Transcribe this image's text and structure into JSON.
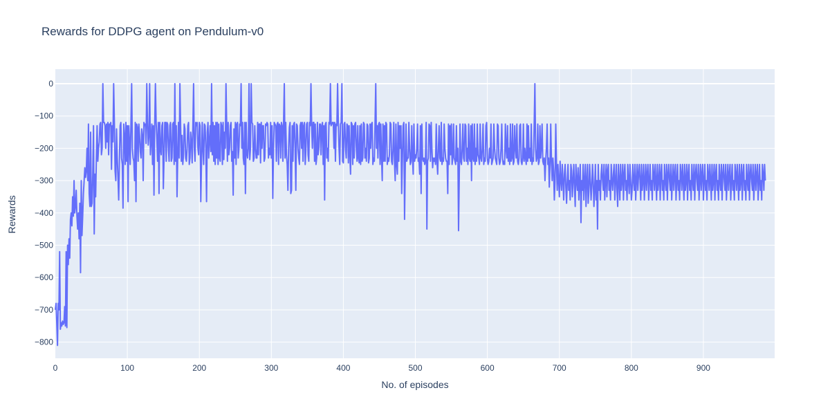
{
  "chart_data": {
    "type": "line",
    "title": "Rewards for DDPG agent on Pendulum-v0",
    "xlabel": "No. of episodes",
    "ylabel": "Rewards",
    "xlim": [
      0,
      999
    ],
    "ylim": [
      -850,
      45
    ],
    "x_ticks": [
      0,
      100,
      200,
      300,
      400,
      500,
      600,
      700,
      800,
      900
    ],
    "y_ticks": [
      0,
      -100,
      -200,
      -300,
      -400,
      -500,
      -600,
      -700,
      -800
    ],
    "grid": true,
    "legend": "none",
    "colors": {
      "line": "#636efa",
      "plot_bg": "#e5ecf6",
      "grid": "#ffffff",
      "text": "#2a3f5f"
    },
    "series": [
      {
        "x_start": 0,
        "x_step": 1,
        "values": [
          -700,
          -680,
          -740,
          -810,
          -680,
          -700,
          -520,
          -760,
          -740,
          -750,
          -735,
          -745,
          -740,
          -690,
          -750,
          -520,
          -755,
          -500,
          -560,
          -480,
          -540,
          -420,
          -400,
          -440,
          -350,
          -410,
          -300,
          -400,
          -380,
          -330,
          -410,
          -450,
          -400,
          -480,
          -370,
          -585,
          -300,
          -470,
          -410,
          -340,
          -300,
          -260,
          -290,
          -270,
          -200,
          -300,
          -125,
          -340,
          -380,
          -150,
          -380,
          -370,
          -280,
          -130,
          -465,
          -280,
          -350,
          -230,
          -130,
          -240,
          -200,
          -180,
          -125,
          -120,
          -220,
          -200,
          0,
          -120,
          -120,
          -130,
          -200,
          -125,
          -180,
          -120,
          -220,
          -125,
          -130,
          -120,
          -265,
          -130,
          -180,
          0,
          -120,
          -270,
          -300,
          -140,
          -230,
          -290,
          -360,
          -240,
          -130,
          -120,
          -230,
          -250,
          -385,
          -125,
          -160,
          -250,
          -120,
          -240,
          -130,
          -365,
          -130,
          -180,
          -250,
          -125,
          0,
          -200,
          -230,
          -240,
          -300,
          -120,
          -365,
          -125,
          -135,
          -240,
          -125,
          -160,
          -210,
          -230,
          -140,
          -160,
          -300,
          -120,
          -130,
          -125,
          -185,
          0,
          -120,
          -190,
          -160,
          0,
          -220,
          -175,
          -125,
          -250,
          -130,
          -345,
          -130,
          0,
          -120,
          -170,
          -240,
          -120,
          -340,
          -120,
          -200,
          -220,
          -130,
          -120,
          -325,
          -225,
          -120,
          -120,
          -240,
          -120,
          -125,
          -200,
          -240,
          -130,
          -120,
          -240,
          -230,
          -125,
          -120,
          -250,
          0,
          -240,
          -130,
          -350,
          -220,
          -120,
          -230,
          0,
          -130,
          -240,
          -160,
          -250,
          -220,
          -125,
          -140,
          -230,
          -240,
          -200,
          -130,
          -120,
          -250,
          -230,
          -150,
          -180,
          -245,
          -135,
          0,
          -200,
          -240,
          -120,
          -130,
          -120,
          -200,
          -220,
          -120,
          -130,
          -365,
          -240,
          -120,
          -200,
          -250,
          -125,
          -130,
          -200,
          -365,
          -150,
          -120,
          -230,
          -180,
          -130,
          -210,
          0,
          -220,
          -120,
          -240,
          -130,
          -250,
          -120,
          -230,
          -120,
          -250,
          -125,
          -230,
          -240,
          -120,
          -130,
          -250,
          -120,
          -235,
          -150,
          -200,
          0,
          -130,
          -240,
          -120,
          -220,
          -200,
          -130,
          -120,
          -240,
          -210,
          -345,
          -140,
          -230,
          -120,
          -250,
          -125,
          -120,
          -230,
          -200,
          -125,
          -130,
          0,
          -200,
          -120,
          -230,
          -250,
          -120,
          -340,
          -120,
          -215,
          -230,
          -200,
          0,
          -235,
          -200,
          0,
          -120,
          -125,
          -240,
          -230,
          -130,
          -200,
          -230,
          -230,
          -120,
          -220,
          -125,
          -125,
          -245,
          -120,
          -200,
          -130,
          -130,
          -240,
          -230,
          -125,
          -130,
          -120,
          -125,
          -230,
          -200,
          -220,
          -120,
          -230,
          -130,
          -355,
          -200,
          -120,
          -125,
          -130,
          -240,
          -125,
          -120,
          -250,
          -125,
          -130,
          -230,
          -120,
          -130,
          -240,
          -120,
          0,
          -230,
          -120,
          -220,
          -250,
          -330,
          -200,
          -135,
          -120,
          -340,
          -330,
          -130,
          -240,
          -125,
          -120,
          -200,
          -330,
          -125,
          -130,
          -200,
          -230,
          -250,
          -130,
          -120,
          -200,
          -120,
          -240,
          -130,
          -120,
          -250,
          -200,
          -125,
          -120,
          -220,
          -240,
          -120,
          -130,
          0,
          -130,
          -200,
          -120,
          -120,
          -240,
          -125,
          -250,
          -230,
          -120,
          -220,
          -200,
          -125,
          -125,
          -220,
          -130,
          -120,
          -250,
          -130,
          -360,
          -125,
          -120,
          -230,
          -200,
          -240,
          -120,
          -125,
          0,
          -130,
          -125,
          -120,
          -120,
          -200,
          -120,
          -240,
          -125,
          -130,
          0,
          -120,
          -200,
          -250,
          -125,
          -120,
          0,
          -240,
          -245,
          -125,
          -120,
          -200,
          -230,
          -125,
          -130,
          -245,
          -130,
          -220,
          -280,
          -120,
          -125,
          -250,
          -130,
          -230,
          -125,
          -120,
          -200,
          -240,
          -130,
          -230,
          -245,
          -130,
          -250,
          -125,
          -240,
          -230,
          -120,
          -125,
          -230,
          -200,
          -240,
          -125,
          -130,
          -245,
          -230,
          -125,
          -200,
          -125,
          -120,
          -250,
          -230,
          -240,
          -125,
          0,
          -200,
          -130,
          -230,
          -125,
          -120,
          -250,
          -125,
          -225,
          -300,
          -125,
          -240,
          -130,
          -240,
          -120,
          -125,
          -250,
          -230,
          -240,
          -220,
          -120,
          -125,
          -240,
          -250,
          -200,
          -120,
          -240,
          -300,
          -125,
          -250,
          -280,
          -120,
          -240,
          -130,
          -200,
          -130,
          -340,
          -230,
          -130,
          -120,
          -420,
          -250,
          -125,
          -240,
          -230,
          -230,
          -120,
          -200,
          -250,
          -240,
          -130,
          -230,
          -280,
          -125,
          -240,
          -220,
          -230,
          -200,
          -125,
          -240,
          -230,
          -280,
          -130,
          -340,
          -125,
          -230,
          -240,
          -230,
          -250,
          -240,
          -120,
          -450,
          -240,
          -230,
          -125,
          -130,
          -240,
          -120,
          -200,
          -260,
          -230,
          -240,
          -230,
          -250,
          -125,
          -240,
          -280,
          -200,
          -130,
          -230,
          -240,
          -120,
          -250,
          -230,
          -240,
          -125,
          -200,
          -230,
          -240,
          -240,
          -340,
          -125,
          -250,
          -130,
          -220,
          -125,
          -250,
          -230,
          -125,
          -230,
          -240,
          -250,
          -130,
          -240,
          -200,
          -455,
          -280,
          -125,
          -240,
          -250,
          -200,
          -125,
          -230,
          -240,
          -125,
          -130,
          -240,
          -200,
          -250,
          -125,
          -230,
          -240,
          -130,
          -300,
          -125,
          -230,
          -240,
          -125,
          -250,
          -200,
          -240,
          -125,
          -220,
          -230,
          -250,
          -125,
          -230,
          -240,
          -200,
          -125,
          -250,
          -230,
          -240,
          -130,
          -120,
          -230,
          -250,
          -240,
          -200,
          -230,
          -125,
          -250,
          -240,
          -230,
          -125,
          -200,
          -230,
          -240,
          -250,
          -125,
          -130,
          -230,
          -250,
          -240,
          -200,
          -125,
          -230,
          -250,
          -240,
          -250,
          -125,
          -200,
          -230,
          -130,
          -240,
          -200,
          -250,
          -125,
          -240,
          -230,
          -125,
          -250,
          -240,
          -130,
          -200,
          -230,
          -125,
          -240,
          -250,
          -230,
          -130,
          -125,
          -240,
          -250,
          -230,
          -125,
          -240,
          -200,
          -230,
          -250,
          -125,
          -240,
          -130,
          -230,
          -200,
          -240,
          -125,
          -250,
          -230,
          -240,
          -130,
          0,
          -200,
          -240,
          -230,
          -125,
          -250,
          -240,
          -130,
          -230,
          -200,
          -125,
          -240,
          -250,
          -230,
          -300,
          -240,
          -200,
          -125,
          -250,
          -230,
          -320,
          -250,
          -125,
          -240,
          -300,
          -230,
          -270,
          -360,
          -300,
          -125,
          -250,
          -330,
          -250,
          -300,
          -350,
          -240,
          -300,
          -330,
          -250,
          -300,
          -360,
          -280,
          -250,
          -320,
          -370,
          -300,
          -250,
          -330,
          -300,
          -360,
          -250,
          -270,
          -350,
          -300,
          -250,
          -320,
          -380,
          -250,
          -300,
          -330,
          -260,
          -360,
          -300,
          -250,
          -430,
          -300,
          -330,
          -250,
          -360,
          -300,
          -250,
          -380,
          -300,
          -250,
          -370,
          -330,
          -250,
          -300,
          -360,
          -320,
          -250,
          -300,
          -380,
          -330,
          -250,
          -360,
          -300,
          -450,
          -250,
          -330,
          -300,
          -360,
          -280,
          -250,
          -300,
          -330,
          -250,
          -360,
          -300,
          -250,
          -350,
          -270,
          -250,
          -330,
          -300,
          -360,
          -250,
          -300,
          -330,
          -280,
          -250,
          -360,
          -300,
          -250,
          -330,
          -380,
          -250,
          -300,
          -360,
          -250,
          -330,
          -300,
          -250,
          -360,
          -280,
          -250,
          -330,
          -300,
          -360,
          -250,
          -300,
          -340,
          -250,
          -300,
          -360,
          -330,
          -250,
          -300,
          -330,
          -250,
          -360,
          -300,
          -250,
          -330,
          -280,
          -250,
          -300,
          -360,
          -250,
          -330,
          -300,
          -250,
          -360,
          -300,
          -250,
          -330,
          -280,
          -250,
          -360,
          -300,
          -250,
          -330,
          -300,
          -360,
          -250,
          -280,
          -330,
          -250,
          -300,
          -360,
          -250,
          -330,
          -300,
          -250,
          -360,
          -280,
          -250,
          -330,
          -300,
          -360,
          -250,
          -300,
          -330,
          -250,
          -360,
          -280,
          -250,
          -300,
          -330,
          -250,
          -360,
          -300,
          -250,
          -330,
          -280,
          -250,
          -360,
          -300,
          -250,
          -330,
          -300,
          -360,
          -250,
          -280,
          -330,
          -250,
          -300,
          -360,
          -250,
          -330,
          -300,
          -250,
          -360,
          -280,
          -250,
          -330,
          -300,
          -360,
          -250,
          -300,
          -330,
          -250,
          -360,
          -280,
          -250,
          -300,
          -330,
          -250,
          -360,
          -300,
          -250,
          -330,
          -280,
          -250,
          -360,
          -300,
          -250,
          -330,
          -300,
          -360,
          -250,
          -280,
          -330,
          -250,
          -300,
          -360,
          -250,
          -330,
          -300,
          -250,
          -360,
          -280,
          -250,
          -330,
          -300,
          -360,
          -250,
          -300,
          -330,
          -250,
          -360,
          -280,
          -250,
          -300,
          -330,
          -250,
          -360,
          -300,
          -250,
          -330,
          -280,
          -250,
          -360,
          -300,
          -250,
          -330,
          -300,
          -360,
          -250,
          -280,
          -330,
          -250,
          -300,
          -360,
          -250,
          -330,
          -300,
          -250,
          -360,
          -280,
          -250,
          -330,
          -300,
          -360,
          -250,
          -300,
          -330,
          -250,
          -360,
          -280,
          -250,
          -300,
          -330,
          -250,
          -360,
          -300,
          -250,
          -330,
          -280,
          -250,
          -360,
          -300,
          -250,
          -330,
          -300,
          -360,
          -250,
          -280,
          -330,
          -250,
          -300
        ]
      }
    ]
  }
}
